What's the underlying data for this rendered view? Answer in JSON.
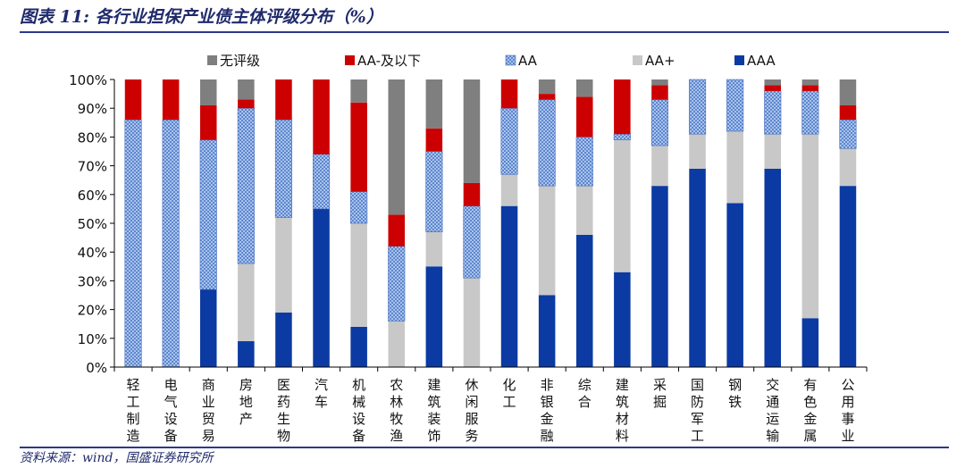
{
  "header": {
    "title": "图表 11: 各行业担保产业债主体评级分布（%）"
  },
  "footer": {
    "source": "资料来源：wind，国盛证券研究所"
  },
  "colors": {
    "AAA": "#0b3aa3",
    "AA+": "#c8c8c8",
    "AA": "#8fb0e0",
    "AA-及以下": "#cc0000",
    "无评级": "#7f7f7f",
    "rule": "#2a3a8c",
    "title": "#1f2a6b"
  },
  "chart_data": {
    "type": "bar",
    "stacked": true,
    "title": "各行业担保产业债主体评级分布（%）",
    "xlabel": "",
    "ylabel": "",
    "ylim": [
      0,
      100
    ],
    "yticks": [
      "0%",
      "10%",
      "20%",
      "30%",
      "40%",
      "50%",
      "60%",
      "70%",
      "80%",
      "90%",
      "100%"
    ],
    "legend_position": "top",
    "categories": [
      "轻工制造",
      "电气设备",
      "商业贸易",
      "房地产",
      "医药生物",
      "汽车",
      "机械设备",
      "农林牧渔",
      "建筑装饰",
      "休闲服务",
      "化工",
      "非银金融",
      "综合",
      "建筑材料",
      "采掘",
      "国防军工",
      "钢铁",
      "交通运输",
      "有色金属",
      "公用事业"
    ],
    "legend": [
      "无评级",
      "AA-及以下",
      "AA",
      "AA+",
      "AAA"
    ],
    "series": [
      {
        "name": "AAA",
        "values": [
          0,
          0,
          27,
          9,
          19,
          55,
          14,
          0,
          35,
          0,
          56,
          25,
          46,
          33,
          63,
          69,
          57,
          69,
          17,
          63
        ]
      },
      {
        "name": "AA+",
        "values": [
          0,
          0,
          0,
          27,
          33,
          0,
          36,
          16,
          12,
          31,
          11,
          38,
          17,
          46,
          14,
          12,
          25,
          12,
          64,
          13
        ]
      },
      {
        "name": "AA",
        "values": [
          86,
          86,
          52,
          54,
          34,
          19,
          11,
          26,
          28,
          25,
          23,
          30,
          17,
          2,
          16,
          19,
          18,
          15,
          15,
          10
        ]
      },
      {
        "name": "AA-及以下",
        "values": [
          14,
          14,
          12,
          3,
          14,
          26,
          31,
          11,
          8,
          8,
          10,
          2,
          14,
          19,
          5,
          0,
          0,
          2,
          2,
          5
        ]
      },
      {
        "name": "无评级",
        "values": [
          0,
          0,
          9,
          7,
          0,
          0,
          8,
          47,
          17,
          36,
          0,
          5,
          6,
          0,
          2,
          0,
          0,
          2,
          2,
          9
        ]
      }
    ]
  }
}
